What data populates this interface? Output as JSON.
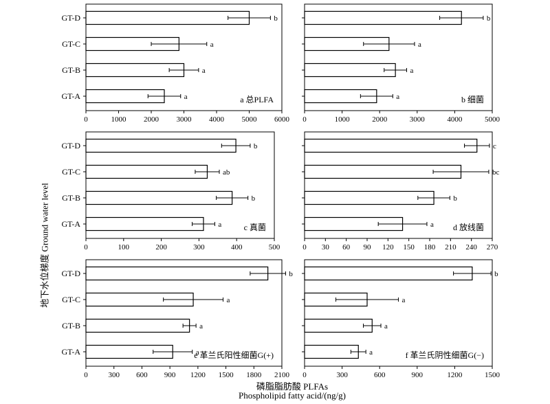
{
  "figure": {
    "ylabel": "地下水位梯度 Ground water level",
    "xlabel_cn": "磷脂脂肪酸 PLFAs",
    "xlabel_en": "Phospholipid fatty acid/(ng/g)"
  },
  "chart_data": [
    {
      "type": "bar",
      "orientation": "horizontal",
      "panel_label": "a 总PLFA",
      "categories": [
        "GT-A",
        "GT-B",
        "GT-C",
        "GT-D"
      ],
      "values": [
        2400,
        3000,
        2850,
        5000
      ],
      "errors": [
        500,
        450,
        850,
        650
      ],
      "letters": [
        "a",
        "a",
        "a",
        "b"
      ],
      "xlim": [
        0,
        6000
      ],
      "xticks": [
        0,
        1000,
        2000,
        3000,
        4000,
        5000,
        6000
      ]
    },
    {
      "type": "bar",
      "orientation": "horizontal",
      "panel_label": "b 细菌",
      "categories": [
        "GT-A",
        "GT-B",
        "GT-C",
        "GT-D"
      ],
      "values": [
        1920,
        2420,
        2250,
        4180
      ],
      "errors": [
        430,
        300,
        680,
        580
      ],
      "letters": [
        "a",
        "a",
        "a",
        "b"
      ],
      "xlim": [
        0,
        5000
      ],
      "xticks": [
        0,
        1000,
        2000,
        3000,
        4000,
        5000
      ]
    },
    {
      "type": "bar",
      "orientation": "horizontal",
      "panel_label": "c 真菌",
      "categories": [
        "GT-A",
        "GT-B",
        "GT-C",
        "GT-D"
      ],
      "values": [
        312,
        388,
        322,
        398
      ],
      "errors": [
        30,
        42,
        32,
        38
      ],
      "letters": [
        "a",
        "b",
        "ab",
        "b"
      ],
      "xlim": [
        0,
        500
      ],
      "xticks": [
        0,
        100,
        200,
        300,
        400,
        500
      ]
    },
    {
      "type": "bar",
      "orientation": "horizontal",
      "panel_label": "d 放线菌",
      "categories": [
        "GT-A",
        "GT-B",
        "GT-C",
        "GT-D"
      ],
      "values": [
        141,
        186,
        225,
        248
      ],
      "errors": [
        35,
        23,
        40,
        18
      ],
      "letters": [
        "a",
        "b",
        "bc",
        "c"
      ],
      "xlim": [
        0,
        270
      ],
      "xticks": [
        0,
        30,
        60,
        90,
        120,
        150,
        180,
        210,
        240,
        270
      ]
    },
    {
      "type": "bar",
      "orientation": "horizontal",
      "panel_label": "e 革兰氏阳性细菌G(+)",
      "categories": [
        "GT-A",
        "GT-B",
        "GT-C",
        "GT-D"
      ],
      "values": [
        930,
        1110,
        1150,
        1950
      ],
      "errors": [
        210,
        70,
        320,
        190
      ],
      "letters": [
        "a",
        "a",
        "a",
        "b"
      ],
      "xlim": [
        0,
        2100
      ],
      "xticks": [
        0,
        300,
        600,
        900,
        1200,
        1500,
        1800,
        2100
      ]
    },
    {
      "type": "bar",
      "orientation": "horizontal",
      "panel_label": "f 革兰氏阴性细菌G(−)",
      "categories": [
        "GT-A",
        "GT-B",
        "GT-C",
        "GT-D"
      ],
      "values": [
        430,
        540,
        500,
        1340
      ],
      "errors": [
        60,
        70,
        250,
        150
      ],
      "letters": [
        "a",
        "a",
        "a",
        "b"
      ],
      "xlim": [
        0,
        1500
      ],
      "xticks": [
        0,
        300,
        600,
        900,
        1200,
        1500
      ]
    }
  ]
}
